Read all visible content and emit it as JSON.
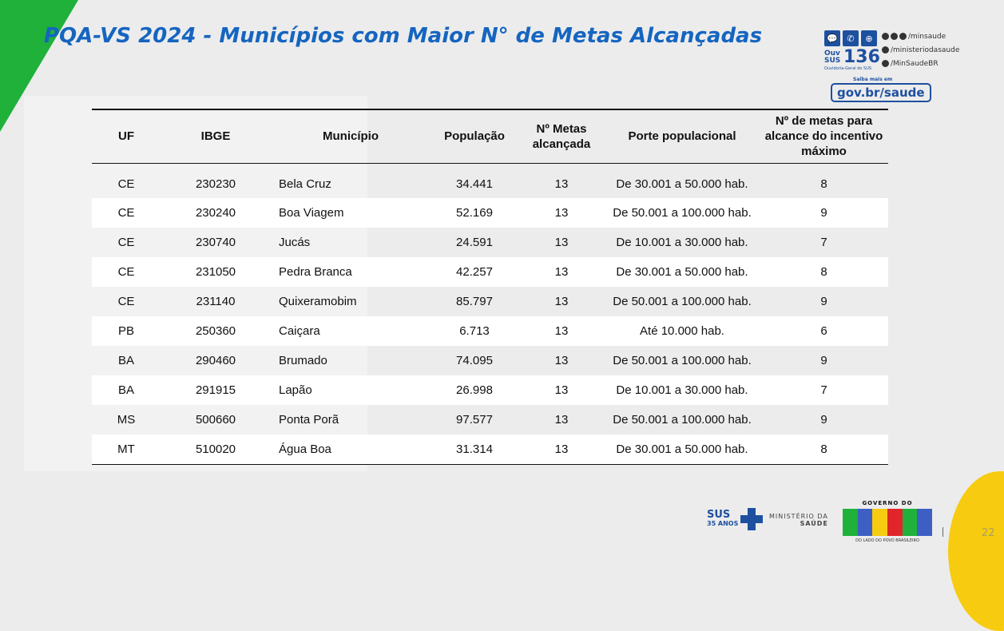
{
  "title": "PQA-VS 2024 - Municípios com Maior N° de Metas Alcançadas",
  "contact": {
    "ouv_label": "Ouv SUS",
    "ouv_number": "136",
    "ouv_sub": "Ouvidoria-Geral do SUS",
    "social": [
      "/minsaude",
      "/ministeriodasaude",
      "/MinSaudeBR"
    ],
    "saiba_mais": "Saiba mais em",
    "site": "gov.br/saude"
  },
  "table": {
    "headers": [
      "UF",
      "IBGE",
      "Município",
      "População",
      "Nº Metas alcançada",
      "Porte populacional",
      "Nº de metas para alcance do incentivo máximo"
    ],
    "rows": [
      [
        "CE",
        "230230",
        "Bela Cruz",
        "34.441",
        "13",
        "De 30.001 a 50.000 hab.",
        "8"
      ],
      [
        "CE",
        "230240",
        "Boa Viagem",
        "52.169",
        "13",
        "De 50.001 a 100.000 hab.",
        "9"
      ],
      [
        "CE",
        "230740",
        "Jucás",
        "24.591",
        "13",
        "De 10.001 a 30.000 hab.",
        "7"
      ],
      [
        "CE",
        "231050",
        "Pedra Branca",
        "42.257",
        "13",
        "De 30.001 a 50.000 hab.",
        "8"
      ],
      [
        "CE",
        "231140",
        "Quixeramobim",
        "85.797",
        "13",
        "De 50.001 a 100.000 hab.",
        "9"
      ],
      [
        "PB",
        "250360",
        "Caiçara",
        "6.713",
        "13",
        "Até 10.000 hab.",
        "6"
      ],
      [
        "BA",
        "290460",
        "Brumado",
        "74.095",
        "13",
        "De 50.001 a 100.000 hab.",
        "9"
      ],
      [
        "BA",
        "291915",
        "Lapão",
        "26.998",
        "13",
        "De 10.001 a 30.000 hab.",
        "7"
      ],
      [
        "MS",
        "500660",
        "Ponta Porã",
        "97.577",
        "13",
        "De 50.001 a 100.000 hab.",
        "9"
      ],
      [
        "MT",
        "510020",
        "Água Boa",
        "31.314",
        "13",
        "De 30.001 a 50.000 hab.",
        "8"
      ]
    ]
  },
  "footer": {
    "sus": "SUS",
    "sus_anos": "35 ANOS",
    "ministerio_1": "MINISTÉRIO DA",
    "ministerio_2": "SAÚDE",
    "governo": "GOVERNO DO",
    "brasil": "BRASIL",
    "slogan": "DO LADO DO POVO BRASILEIRO",
    "page": "22"
  },
  "colors": {
    "title": "#1565c0",
    "green": "#1fb13a",
    "yellow": "#f7cb10",
    "navy": "#1e50a0"
  }
}
